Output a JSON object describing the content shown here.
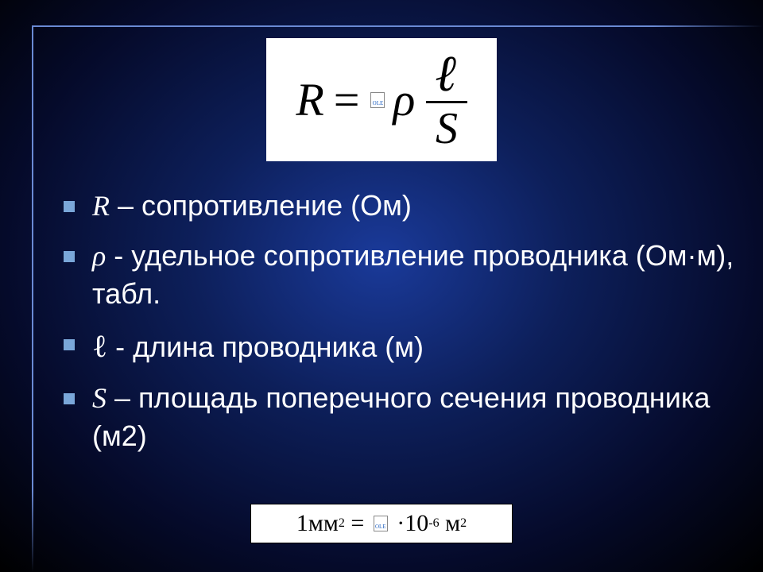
{
  "formula": {
    "lhs": "R",
    "equals": "=",
    "ole": "OLE",
    "rho": "ρ",
    "numerator": "ℓ",
    "denominator": "S"
  },
  "items": [
    {
      "symbol": "R",
      "text": " – сопротивление (Ом)",
      "symbolClass": "ital"
    },
    {
      "symbol": "ρ",
      "text": "  - удельное сопротивление проводника (Ом·м), табл.",
      "symbolClass": "ital"
    },
    {
      "symbol": "ℓ",
      "text": "  - длина проводника (м)",
      "symbolClass": "script"
    },
    {
      "symbol": "S",
      "text": " – площадь поперечного сечения проводника (м2)",
      "symbolClass": "ital"
    }
  ],
  "conversion": {
    "left_val": "1",
    "left_unit": "мм",
    "left_sup": "2",
    "equals": "=",
    "ole": "OLE",
    "dot": "·",
    "right_base": "10",
    "right_exp": "-6",
    "right_unit": "м",
    "right_sup": "2"
  },
  "colors": {
    "bullet": "#7aa7d9",
    "frame": "#6a8ad4",
    "text": "#ffffff",
    "box_bg": "#ffffff",
    "box_fg": "#000000"
  },
  "typography": {
    "body_fontsize": 36,
    "formula_fontsize": 58,
    "conversion_fontsize": 30
  }
}
